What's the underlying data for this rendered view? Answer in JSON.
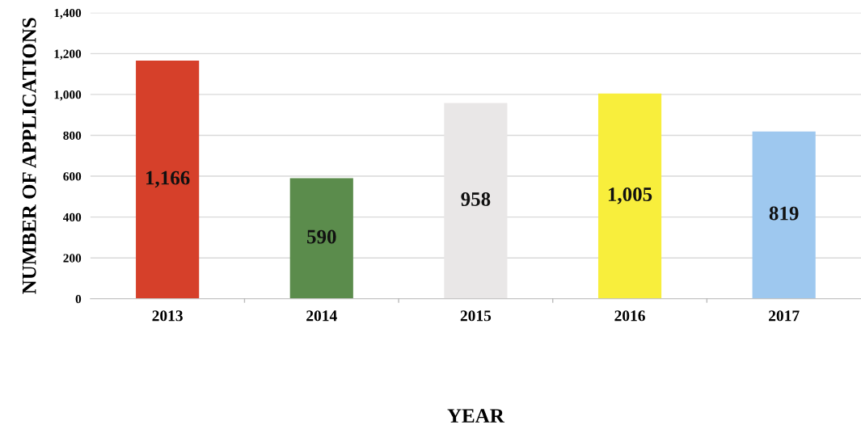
{
  "chart_data": {
    "type": "bar",
    "xlabel": "YEAR",
    "ylabel": "NUMBER OF APPLICATIONS",
    "categories": [
      "2013",
      "2014",
      "2015",
      "2016",
      "2017"
    ],
    "values": [
      1166,
      590,
      958,
      1005,
      819
    ],
    "colors": [
      "#d6402a",
      "#5b8c4c",
      "#e9e7e7",
      "#f8ee3c",
      "#9ec8ef"
    ],
    "value_labels": [
      "1,166",
      "590",
      "958",
      "1,005",
      "819"
    ],
    "ylim": [
      0,
      1400
    ],
    "yticks": [
      0,
      200,
      400,
      600,
      800,
      {
        "value": 1000,
        "label": "1,000"
      },
      {
        "value": 1200,
        "label": "1,200"
      },
      {
        "value": 1400,
        "label": "1,400"
      }
    ],
    "grid": "y",
    "legend": false
  }
}
